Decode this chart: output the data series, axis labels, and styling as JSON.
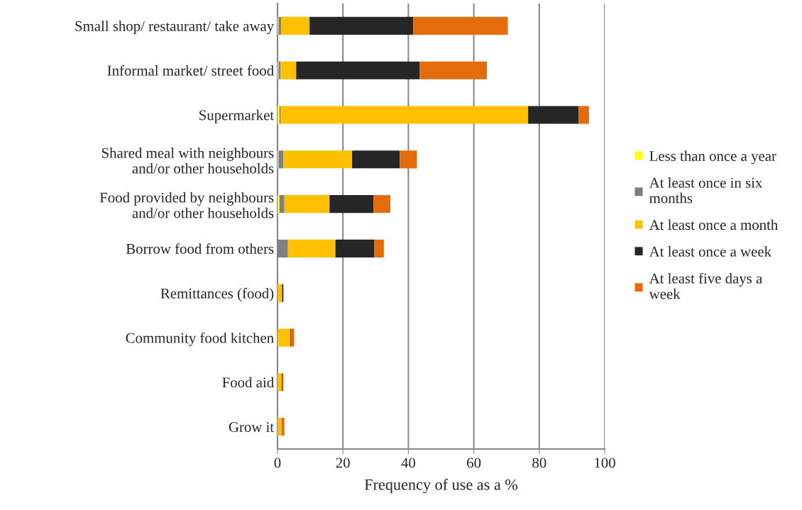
{
  "chart_data": {
    "type": "bar",
    "orientation": "horizontal",
    "stacked": true,
    "xlabel": "Frequency of use as a %",
    "categories": [
      "Small shop/ restaurant/ take away",
      "Informal market/ street food",
      "Supermarket",
      "Shared meal with neighbours\nand/or other households",
      "Food provided by neighbours\nand/or other households",
      "Borrow food from others",
      "Remittances (food)",
      "Community food kitchen",
      "Food aid",
      "Grow it"
    ],
    "series": [
      {
        "name": "Less than once a year",
        "color": "#ffff00",
        "values": [
          0.3,
          0.3,
          0.6,
          0.3,
          0.6,
          0,
          0,
          0,
          0,
          0
        ]
      },
      {
        "name": "At least once in six\nmonths",
        "color": "#7f7f7f",
        "values": [
          0.8,
          0.6,
          0.4,
          1.5,
          1.5,
          3.2,
          null,
          null,
          null,
          null
        ]
      },
      {
        "name": "At least once a month",
        "color": "#ffc000",
        "values": [
          8.7,
          4.8,
          75.6,
          21.0,
          13.8,
          14.5,
          1.4,
          3.9,
          1.3,
          1.2
        ]
      },
      {
        "name": "At least once a week",
        "color": "#262626",
        "values": [
          31.7,
          37.8,
          15.4,
          14.6,
          13.4,
          11.8,
          0.4,
          0.2,
          0.2,
          0
        ]
      },
      {
        "name": "At least five days a\nweek",
        "color": "#e46c0a",
        "values": [
          28.9,
          20.5,
          3.2,
          5.2,
          5.2,
          3.0,
          0,
          1.0,
          0.3,
          0.9
        ]
      }
    ],
    "xlim": [
      0,
      100
    ],
    "xticks": [
      0,
      20,
      40,
      60,
      80,
      100
    ],
    "grid": "x",
    "legend": "right"
  }
}
